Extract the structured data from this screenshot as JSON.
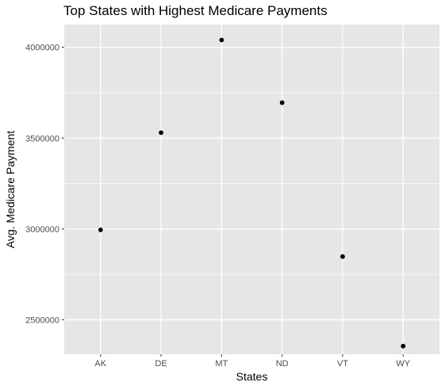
{
  "chart_data": {
    "type": "scatter",
    "title": "Top States with Highest Medicare Payments",
    "xlabel": "States",
    "ylabel": "Avg. Medicare Payment",
    "categories": [
      "AK",
      "DE",
      "MT",
      "ND",
      "VT",
      "WY"
    ],
    "values": [
      2995000,
      3530000,
      4040000,
      3695000,
      2848000,
      2355000
    ],
    "ylim": [
      2310000,
      4125000
    ],
    "yticks": [
      2500000,
      3000000,
      3500000,
      4000000
    ],
    "ytick_labels": [
      "2500000",
      "3000000",
      "3500000",
      "4000000"
    ],
    "grid": true,
    "colors": {
      "panel": "#e6e6e6",
      "grid_major": "#ffffff",
      "point": "#000000"
    }
  }
}
